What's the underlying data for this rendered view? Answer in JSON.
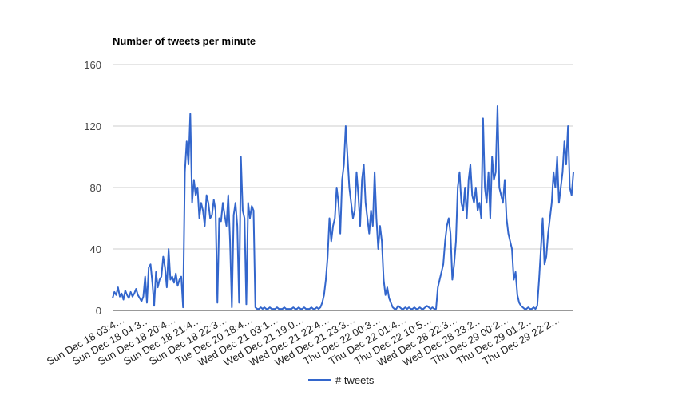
{
  "chart_data": {
    "type": "line",
    "title": "Number of tweets per minute",
    "xlabel": "",
    "ylabel": "",
    "ylim": [
      0,
      160
    ],
    "yticks": [
      0,
      40,
      80,
      120,
      160
    ],
    "grid": true,
    "legend_position": "bottom",
    "x_tick_labels": [
      "Sun Dec 18 03:4…",
      "Sun Dec 18 04:3…",
      "Sun Dec 18 20:4…",
      "Sun Dec 18 21:4…",
      "Sun Dec 18 22:3…",
      "Tue Dec 20 18:4…",
      "Wed Dec 21 03:1…",
      "Wed Dec 21 19:0…",
      "Wed Dec 21 22:4…",
      "Wed Dec 21 23:3…",
      "Thu Dec 22 00:3…",
      "Thu Dec 22 01:4…",
      "Thu Dec 22 10:5…",
      "Wed Dec 28 22:3…",
      "Wed Dec 28 23:2…",
      "Thu Dec 29 00:2…",
      "Thu Dec 29 01:2…",
      "Thu Dec 29 22:2…"
    ],
    "series": [
      {
        "name": "# tweets",
        "color": "#3366cc",
        "values": [
          8,
          12,
          10,
          15,
          9,
          11,
          7,
          13,
          10,
          8,
          12,
          9,
          11,
          14,
          10,
          8,
          6,
          9,
          22,
          5,
          28,
          30,
          18,
          3,
          25,
          15,
          20,
          22,
          35,
          28,
          15,
          40,
          20,
          22,
          18,
          24,
          16,
          20,
          22,
          2,
          90,
          110,
          95,
          128,
          70,
          85,
          75,
          80,
          60,
          70,
          65,
          55,
          75,
          70,
          60,
          62,
          72,
          65,
          5,
          60,
          58,
          70,
          62,
          55,
          75,
          45,
          2,
          62,
          70,
          55,
          5,
          100,
          65,
          60,
          4,
          70,
          60,
          68,
          65,
          2,
          1,
          1,
          2,
          1,
          2,
          1,
          1,
          2,
          1,
          1,
          1,
          2,
          1,
          1,
          1,
          2,
          1,
          1,
          1,
          1,
          2,
          1,
          1,
          2,
          1,
          1,
          2,
          1,
          1,
          1,
          2,
          1,
          1,
          2,
          1,
          2,
          5,
          10,
          20,
          35,
          60,
          45,
          55,
          60,
          80,
          70,
          50,
          85,
          95,
          120,
          100,
          80,
          70,
          60,
          65,
          90,
          75,
          55,
          85,
          95,
          70,
          60,
          50,
          65,
          55,
          90,
          60,
          40,
          55,
          45,
          20,
          10,
          15,
          8,
          5,
          2,
          1,
          1,
          3,
          2,
          1,
          1,
          2,
          1,
          2,
          1,
          1,
          2,
          1,
          1,
          2,
          1,
          1,
          2,
          3,
          2,
          1,
          2,
          1,
          1,
          15,
          20,
          25,
          30,
          45,
          55,
          60,
          50,
          20,
          30,
          45,
          80,
          90,
          70,
          65,
          80,
          60,
          85,
          95,
          75,
          70,
          80,
          65,
          70,
          60,
          125,
          80,
          70,
          90,
          60,
          100,
          85,
          90,
          133,
          80,
          75,
          70,
          85,
          60,
          50,
          45,
          40,
          20,
          25,
          10,
          5,
          3,
          2,
          1,
          1,
          2,
          1,
          1,
          2,
          1,
          3,
          20,
          40,
          60,
          30,
          35,
          50,
          60,
          70,
          90,
          80,
          100,
          70,
          80,
          90,
          110,
          95,
          120,
          80,
          75,
          90
        ]
      }
    ]
  }
}
